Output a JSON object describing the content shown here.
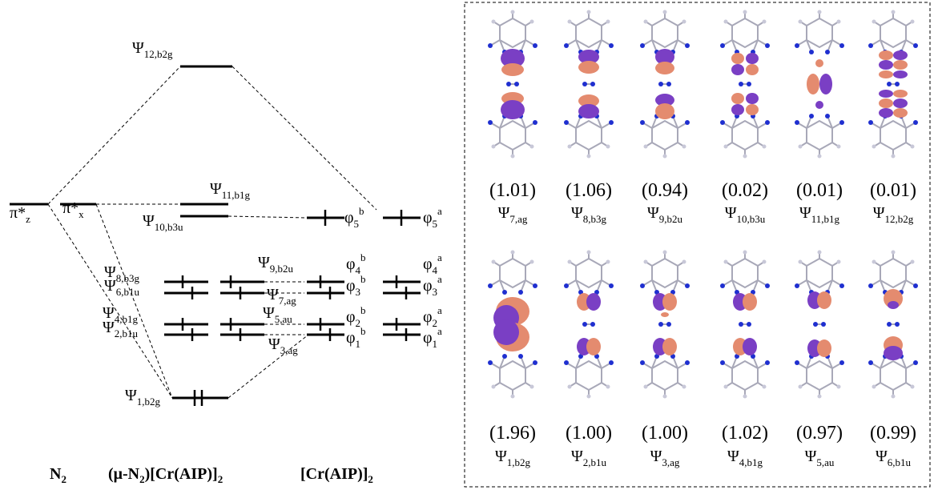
{
  "diagram": {
    "labels": [
      {
        "symbol": "π*",
        "sub": "z"
      },
      {
        "symbol": "π*",
        "sub": "x"
      },
      {
        "symbol": "Ψ",
        "sub": "12,b2g"
      },
      {
        "symbol": "Ψ",
        "sub": "11,b1g"
      },
      {
        "symbol": "Ψ",
        "sub": "10,b3u"
      },
      {
        "symbol": "Ψ",
        "sub": "8,b3g"
      },
      {
        "symbol": "Ψ",
        "sub": "6,b1u"
      },
      {
        "symbol": "Ψ",
        "sub": "4,b1g"
      },
      {
        "symbol": "Ψ",
        "sub": "2,b1u"
      },
      {
        "symbol": "Ψ",
        "sub": "9,b2u"
      },
      {
        "symbol": "Ψ",
        "sub": "7,ag"
      },
      {
        "symbol": "Ψ",
        "sub": "5,au"
      },
      {
        "symbol": "Ψ",
        "sub": "3,ag"
      },
      {
        "symbol": "Ψ",
        "sub": "1,b2g"
      },
      {
        "symbol": "φ",
        "sub": "5",
        "sup": "b"
      },
      {
        "symbol": "φ",
        "sub": "5",
        "sup": "a"
      },
      {
        "symbol": "φ",
        "sub": "4",
        "sup": "b"
      },
      {
        "symbol": "φ",
        "sub": "4",
        "sup": "a"
      },
      {
        "symbol": "φ",
        "sub": "3",
        "sup": "b"
      },
      {
        "symbol": "φ",
        "sub": "3",
        "sup": "a"
      },
      {
        "symbol": "φ",
        "sub": "2",
        "sup": "b"
      },
      {
        "symbol": "φ",
        "sub": "2",
        "sup": "a"
      },
      {
        "symbol": "φ",
        "sub": "1",
        "sup": "b"
      },
      {
        "symbol": "φ",
        "sub": "1",
        "sup": "a"
      }
    ],
    "bottom_labels": [
      [
        "N",
        "2"
      ],
      [
        "(μ-N",
        "2",
        ")[Cr(AIP)]",
        "2"
      ],
      [
        "[Cr(AIP)]",
        "2"
      ]
    ]
  },
  "orbitals": {
    "top": [
      {
        "occupation": "(1.01)",
        "symbol": "Ψ",
        "sub": "7,ag"
      },
      {
        "occupation": "(1.06)",
        "symbol": "Ψ",
        "sub": "8,b3g"
      },
      {
        "occupation": "(0.94)",
        "symbol": "Ψ",
        "sub": "9,b2u"
      },
      {
        "occupation": "(0.02)",
        "symbol": "Ψ",
        "sub": "10,b3u"
      },
      {
        "occupation": "(0.01)",
        "symbol": "Ψ",
        "sub": "11,b1g"
      },
      {
        "occupation": "(0.01)",
        "symbol": "Ψ",
        "sub": "12,b2g"
      }
    ],
    "bottom": [
      {
        "occupation": "(1.96)",
        "symbol": "Ψ",
        "sub": "1,b2g"
      },
      {
        "occupation": "(1.00)",
        "symbol": "Ψ",
        "sub": "2,b1u"
      },
      {
        "occupation": "(1.00)",
        "symbol": "Ψ",
        "sub": "3,ag"
      },
      {
        "occupation": "(1.02)",
        "symbol": "Ψ",
        "sub": "4,b1g"
      },
      {
        "occupation": "(0.97)",
        "symbol": "Ψ",
        "sub": "5,au"
      },
      {
        "occupation": "(0.99)",
        "symbol": "Ψ",
        "sub": "6,b1u"
      }
    ]
  }
}
